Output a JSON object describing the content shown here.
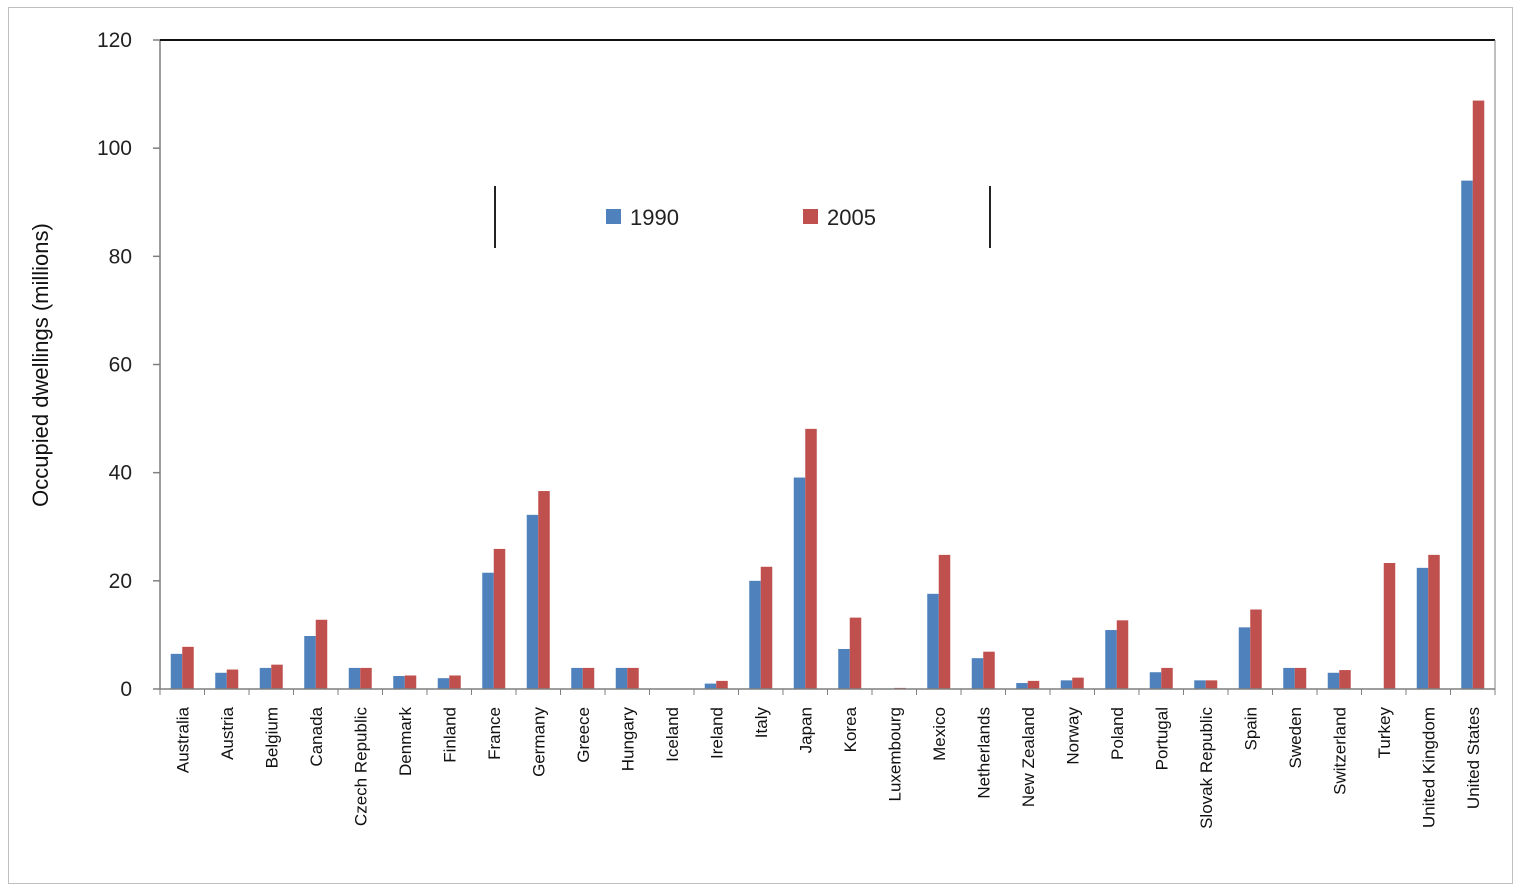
{
  "chart_data": {
    "type": "bar",
    "title": "",
    "xlabel": "",
    "ylabel": "Occupied dwellings (millions)",
    "ylim": [
      0,
      120
    ],
    "yticks": [
      0,
      20,
      40,
      60,
      80,
      100,
      120
    ],
    "ytick_labels": [
      "0",
      "20",
      "40",
      "60",
      "80",
      "100",
      "120"
    ],
    "grid": false,
    "legend_position": "top-center",
    "categories": [
      "Australia",
      "Austria",
      "Belgium",
      "Canada",
      "Czech Republic",
      "Denmark",
      "Finland",
      "France",
      "Germany",
      "Greece",
      "Hungary",
      "Iceland",
      "Ireland",
      "Italy",
      "Japan",
      "Korea",
      "Luxembourg",
      "Mexico",
      "Netherlands",
      "New Zealand",
      "Norway",
      "Poland",
      "Portugal",
      "Slovak Republic",
      "Spain",
      "Sweden",
      "Switzerland",
      "Turkey",
      "United Kingdom",
      "United States"
    ],
    "series": [
      {
        "name": "1990",
        "color": "#4f81bd",
        "values": [
          6.5,
          3.0,
          3.9,
          9.8,
          3.9,
          2.4,
          2.0,
          21.5,
          32.2,
          3.9,
          3.9,
          0.1,
          1.0,
          20.0,
          39.1,
          7.4,
          0.1,
          17.6,
          5.7,
          1.1,
          1.6,
          10.9,
          3.1,
          1.6,
          11.4,
          3.9,
          3.0,
          0,
          22.4,
          94.0
        ]
      },
      {
        "name": "2005",
        "color": "#c0504d",
        "values": [
          7.8,
          3.6,
          4.5,
          12.8,
          3.9,
          2.5,
          2.5,
          25.9,
          36.6,
          3.9,
          3.9,
          0.1,
          1.5,
          22.6,
          48.1,
          13.2,
          0.2,
          24.8,
          6.9,
          1.5,
          2.1,
          12.7,
          3.9,
          1.6,
          14.7,
          3.9,
          3.5,
          23.3,
          24.8,
          108.8
        ]
      }
    ]
  }
}
